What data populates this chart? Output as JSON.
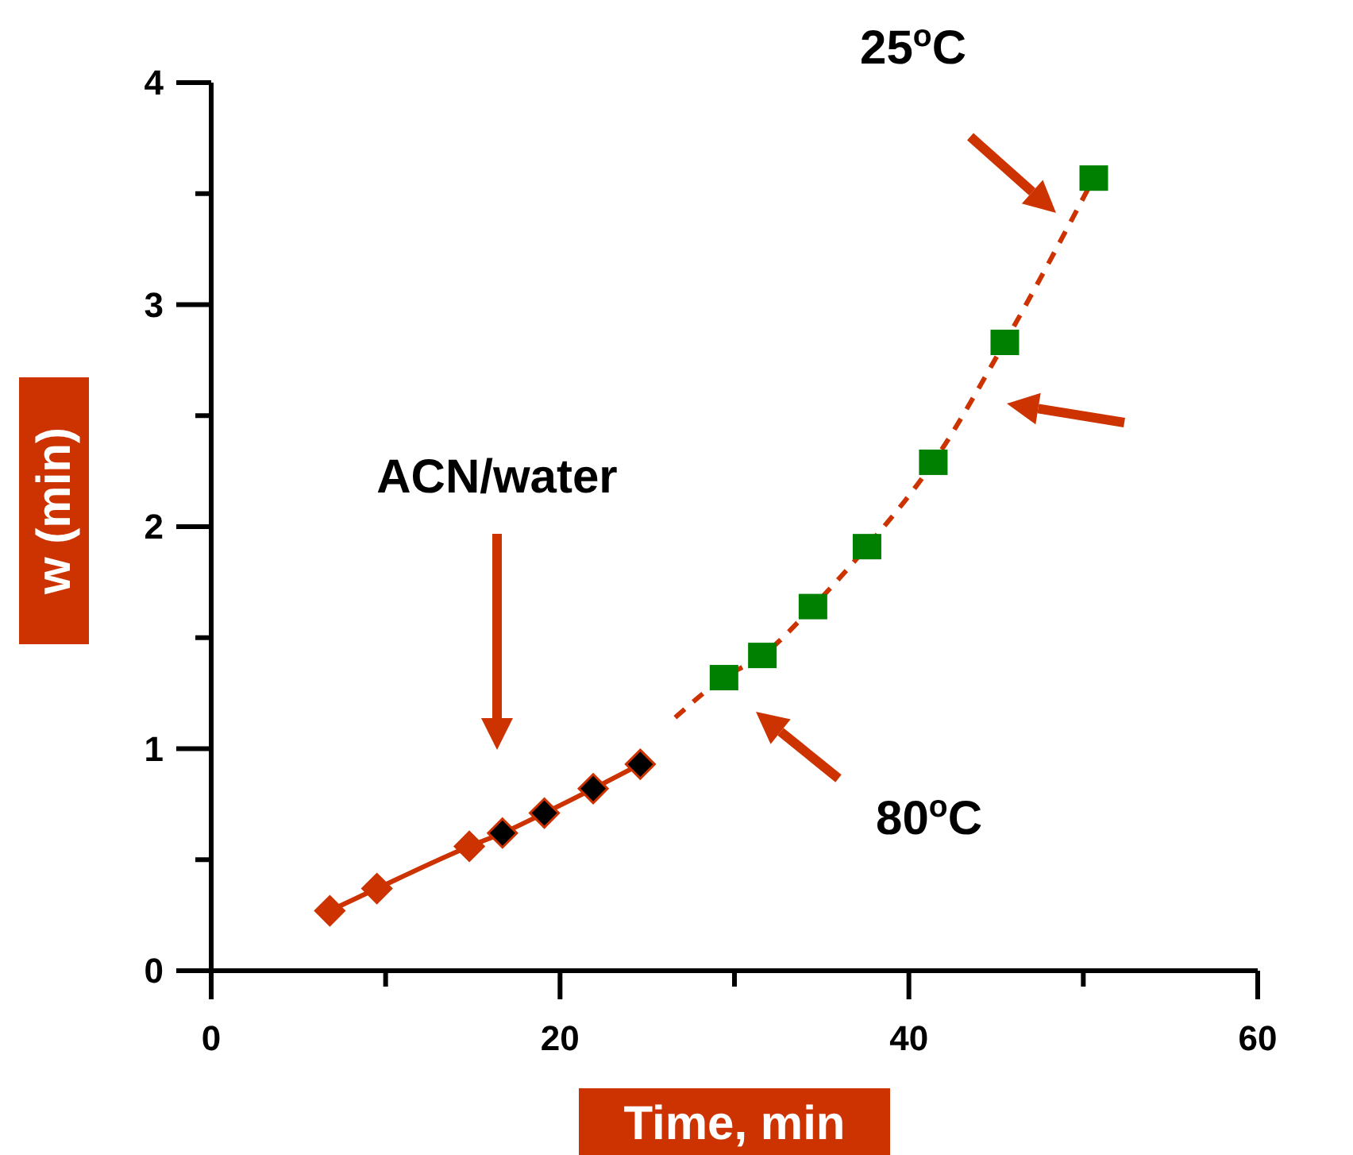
{
  "chart_data": {
    "type": "scatter",
    "xlabel": "Time, min",
    "ylabel": "w (min)",
    "xlim": [
      0,
      60
    ],
    "ylim": [
      0,
      4
    ],
    "xticks": [
      0,
      {
        "value": 10,
        "label": null
      },
      20,
      {
        "value": 30,
        "label": null
      },
      40,
      {
        "value": 50,
        "label": null
      },
      60
    ],
    "yticks": [
      0,
      {
        "value": 0.5,
        "label": null
      },
      1,
      {
        "value": 1.5,
        "label": null
      },
      2,
      {
        "value": 2.5,
        "label": null
      },
      3,
      {
        "value": 3.5,
        "label": null
      },
      4
    ],
    "grid": false,
    "series": [
      {
        "type": "line",
        "color": "#cc3300",
        "line_style": "solid",
        "marker": "none",
        "x": [
          6.8,
          9.5,
          14.8,
          16.7,
          19.1,
          21.9,
          24.6
        ],
        "values": [
          0.27,
          0.37,
          0.56,
          0.62,
          0.71,
          0.82,
          0.93
        ]
      },
      {
        "color": "#cc3300",
        "marker": "diamond",
        "x": [
          6.8,
          9.5,
          14.8
        ],
        "values": [
          0.27,
          0.37,
          0.56
        ]
      },
      {
        "color": "#000000",
        "marker": "diamond",
        "x": [
          16.7,
          19.1,
          21.9,
          24.6
        ],
        "values": [
          0.62,
          0.71,
          0.82,
          0.93
        ]
      },
      {
        "type": "line",
        "color": "#cc3300",
        "line_style": "dashed",
        "marker": "none",
        "x": [
          26.6,
          29.4,
          31.6,
          34.5,
          37.6,
          41.4,
          45.5,
          50.6
        ],
        "values": [
          1.14,
          1.32,
          1.42,
          1.64,
          1.91,
          2.29,
          2.83,
          3.57
        ]
      },
      {
        "color": "#008000",
        "marker": "square",
        "x": [
          29.4,
          31.6,
          34.5,
          37.6,
          41.4,
          45.5,
          50.6
        ],
        "values": [
          1.32,
          1.42,
          1.64,
          1.91,
          2.29,
          2.83,
          3.57
        ]
      }
    ],
    "annotations": [
      "ACN/water",
      "25$^{o}$C",
      "80$^{o}$C"
    ]
  }
}
